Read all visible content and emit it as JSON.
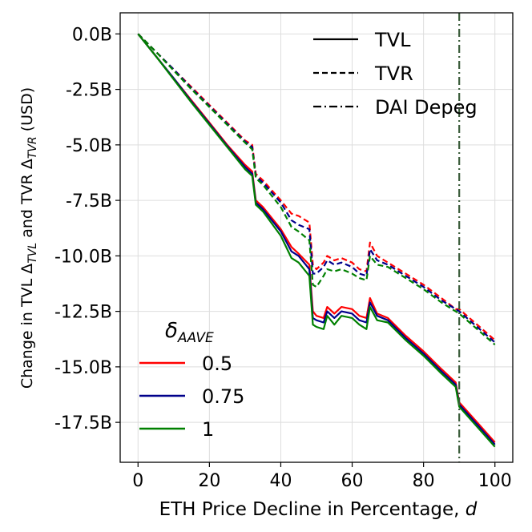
{
  "chart_data": {
    "type": "line",
    "xlabel": {
      "main": "ETH Price Decline in Percentage, ",
      "var": "d"
    },
    "ylabel": {
      "parts": [
        {
          "text": "Change in TVL Δ",
          "sub": false
        },
        {
          "text": "TVL",
          "sub": true
        },
        {
          "text": " and TVR Δ",
          "sub": false
        },
        {
          "text": "TVR",
          "sub": true
        },
        {
          "text": " (USD)",
          "sub": false
        }
      ]
    },
    "xlim": [
      -5,
      105
    ],
    "ylim": [
      -19.3,
      0.95
    ],
    "xticks": [
      {
        "value": 0,
        "label": "0"
      },
      {
        "value": 20,
        "label": "20"
      },
      {
        "value": 40,
        "label": "40"
      },
      {
        "value": 60,
        "label": "60"
      },
      {
        "value": 80,
        "label": "80"
      },
      {
        "value": 100,
        "label": "100"
      }
    ],
    "yticks": [
      {
        "value": 0,
        "label": "0.0B"
      },
      {
        "value": -2.5,
        "label": "-2.5B"
      },
      {
        "value": -5,
        "label": "-5.0B"
      },
      {
        "value": -7.5,
        "label": "-7.5B"
      },
      {
        "value": -10,
        "label": "-10.0B"
      },
      {
        "value": -12.5,
        "label": "-12.5B"
      },
      {
        "value": -15,
        "label": "-15.0B"
      },
      {
        "value": -17.5,
        "label": "-17.5B"
      }
    ],
    "grid": true,
    "depeg_line": {
      "x": 90,
      "color": "#3b5d3b",
      "label": "DAI Depeg"
    },
    "style_legend": {
      "placement": "top-right",
      "items": [
        {
          "label": "TVL",
          "style": "solid"
        },
        {
          "label": "TVR",
          "style": "dashed"
        },
        {
          "label": "DAI Depeg",
          "style": "dashdot"
        }
      ]
    },
    "color_legend": {
      "placement": "lower-left",
      "title_main": "δ",
      "title_sub": "AAVE",
      "items": [
        {
          "label": "0.5",
          "color": "#ff0000"
        },
        {
          "label": "0.75",
          "color": "#00008b"
        },
        {
          "label": "1",
          "color": "#008000"
        }
      ]
    },
    "x": [
      0,
      5,
      10,
      15,
      20,
      25,
      30,
      32,
      33,
      35,
      40,
      43,
      45,
      48,
      49,
      50,
      52,
      53,
      55,
      57,
      60,
      62,
      64,
      65,
      67,
      70,
      75,
      80,
      85,
      89,
      90,
      95,
      100
    ],
    "series": [
      {
        "name": "0.5",
        "metric": "TVL",
        "color": "#ff0000",
        "style": "solid",
        "values": [
          0,
          -1.0,
          -2.0,
          -3.0,
          -4.0,
          -5.0,
          -5.9,
          -6.2,
          -7.5,
          -7.8,
          -8.8,
          -9.6,
          -9.9,
          -10.4,
          -12.5,
          -12.7,
          -12.8,
          -12.3,
          -12.6,
          -12.3,
          -12.4,
          -12.7,
          -12.8,
          -11.9,
          -12.6,
          -12.8,
          -13.6,
          -14.3,
          -15.1,
          -15.7,
          -16.6,
          -17.5,
          -18.4
        ]
      },
      {
        "name": "0.75",
        "metric": "TVL",
        "color": "#00008b",
        "style": "solid",
        "values": [
          0,
          -1.0,
          -2.0,
          -3.05,
          -4.05,
          -5.05,
          -6.0,
          -6.3,
          -7.6,
          -7.9,
          -8.9,
          -9.8,
          -10.0,
          -10.6,
          -12.8,
          -12.9,
          -13.0,
          -12.5,
          -12.8,
          -12.5,
          -12.6,
          -12.9,
          -13.0,
          -12.1,
          -12.7,
          -12.9,
          -13.7,
          -14.4,
          -15.2,
          -15.8,
          -16.7,
          -17.6,
          -18.5
        ]
      },
      {
        "name": "1",
        "metric": "TVL",
        "color": "#008000",
        "style": "solid",
        "values": [
          0,
          -1.0,
          -2.05,
          -3.1,
          -4.1,
          -5.1,
          -6.1,
          -6.4,
          -7.7,
          -8.0,
          -9.1,
          -10.1,
          -10.3,
          -10.9,
          -13.1,
          -13.2,
          -13.3,
          -12.7,
          -13.1,
          -12.7,
          -12.8,
          -13.1,
          -13.3,
          -12.3,
          -12.9,
          -13.0,
          -13.8,
          -14.5,
          -15.3,
          -15.9,
          -16.8,
          -17.7,
          -18.6
        ]
      },
      {
        "name": "0.5",
        "metric": "TVR",
        "color": "#ff0000",
        "style": "dashed",
        "values": [
          0,
          -0.8,
          -1.6,
          -2.4,
          -3.2,
          -4.0,
          -4.8,
          -5.0,
          -6.3,
          -6.6,
          -7.5,
          -8.1,
          -8.2,
          -8.5,
          -10.4,
          -10.6,
          -10.3,
          -10.0,
          -10.2,
          -10.1,
          -10.3,
          -10.6,
          -10.7,
          -9.4,
          -10.0,
          -10.3,
          -10.8,
          -11.3,
          -11.9,
          -12.4,
          -12.4,
          -13.1,
          -13.8
        ]
      },
      {
        "name": "0.75",
        "metric": "TVR",
        "color": "#00008b",
        "style": "dashed",
        "values": [
          0,
          -0.8,
          -1.6,
          -2.45,
          -3.25,
          -4.05,
          -4.85,
          -5.1,
          -6.4,
          -6.7,
          -7.6,
          -8.4,
          -8.6,
          -8.8,
          -10.8,
          -10.8,
          -10.5,
          -10.2,
          -10.4,
          -10.3,
          -10.5,
          -10.8,
          -10.9,
          -9.7,
          -10.2,
          -10.4,
          -10.9,
          -11.4,
          -12.0,
          -12.4,
          -12.5,
          -13.2,
          -13.9
        ]
      },
      {
        "name": "1",
        "metric": "TVR",
        "color": "#008000",
        "style": "dashed",
        "values": [
          0,
          -0.8,
          -1.65,
          -2.5,
          -3.3,
          -4.1,
          -4.9,
          -5.2,
          -6.5,
          -6.8,
          -7.8,
          -8.7,
          -8.9,
          -9.3,
          -11.3,
          -11.4,
          -10.9,
          -10.6,
          -10.7,
          -10.6,
          -10.8,
          -11.0,
          -11.1,
          -10.0,
          -10.4,
          -10.5,
          -11.0,
          -11.5,
          -12.1,
          -12.5,
          -12.6,
          -13.3,
          -14.0
        ]
      }
    ]
  }
}
